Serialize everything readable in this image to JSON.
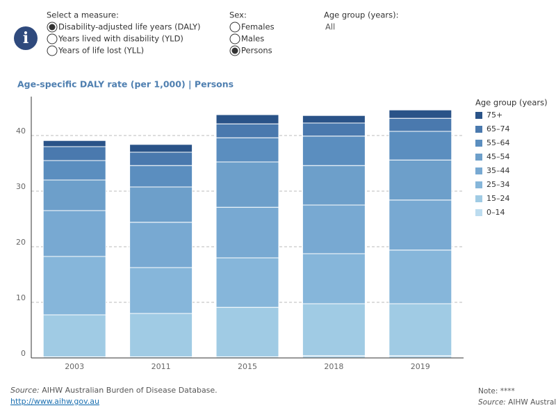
{
  "controls": {
    "measure": {
      "label": "Select a measure:",
      "options": [
        "Disability-adjusted life years (DALY)",
        "Years lived with disability (YLD)",
        "Years of life lost (YLL)"
      ],
      "selected": 0
    },
    "sex": {
      "label": "Sex:",
      "options": [
        "Females",
        "Males",
        "Persons"
      ],
      "selected": 2
    },
    "age_group": {
      "label": "Age group (years):",
      "value": "All"
    }
  },
  "chart_data": {
    "type": "stacked_bar",
    "title": "Age-specific DALY rate (per 1,000) | Persons",
    "legend_title": "Age group (years)",
    "legend": "right",
    "categories": [
      "2003",
      "2011",
      "2015",
      "2018",
      "2019"
    ],
    "ylim": [
      0,
      47
    ],
    "yticks": [
      0,
      10,
      20,
      30,
      40
    ],
    "grid": true,
    "series": [
      {
        "name": "0–14",
        "color": "#bcdcef",
        "values": [
          0.2,
          0.2,
          0.2,
          0.4,
          0.4
        ]
      },
      {
        "name": "15–24",
        "color": "#a0cbe4",
        "values": [
          7.55,
          7.8,
          8.9,
          9.35,
          9.35
        ]
      },
      {
        "name": "25–34",
        "color": "#86b6da",
        "values": [
          10.5,
          8.25,
          8.9,
          9.0,
          9.65
        ]
      },
      {
        "name": "35–44",
        "color": "#78a9d2",
        "values": [
          8.25,
          8.15,
          9.1,
          8.75,
          9.0
        ]
      },
      {
        "name": "45–54",
        "color": "#6d9fca",
        "values": [
          5.5,
          6.35,
          8.15,
          7.1,
          7.2
        ]
      },
      {
        "name": "55–64",
        "color": "#5b8ebf",
        "values": [
          3.5,
          3.85,
          4.35,
          5.3,
          5.15
        ]
      },
      {
        "name": "65–74",
        "color": "#4a79ae",
        "values": [
          2.5,
          2.4,
          2.5,
          2.35,
          2.35
        ]
      },
      {
        "name": "75+",
        "color": "#2a5388",
        "values": [
          1.1,
          1.4,
          1.65,
          1.35,
          1.5
        ]
      }
    ]
  },
  "footer": {
    "source_label": "Source:",
    "source_text": " AIHW Australian Burden of Disease Database.",
    "link": "http://www.aihw.gov.au",
    "note": "Note: ****",
    "source2_label": "Source:",
    "source2_text": " AIHW Austral"
  }
}
